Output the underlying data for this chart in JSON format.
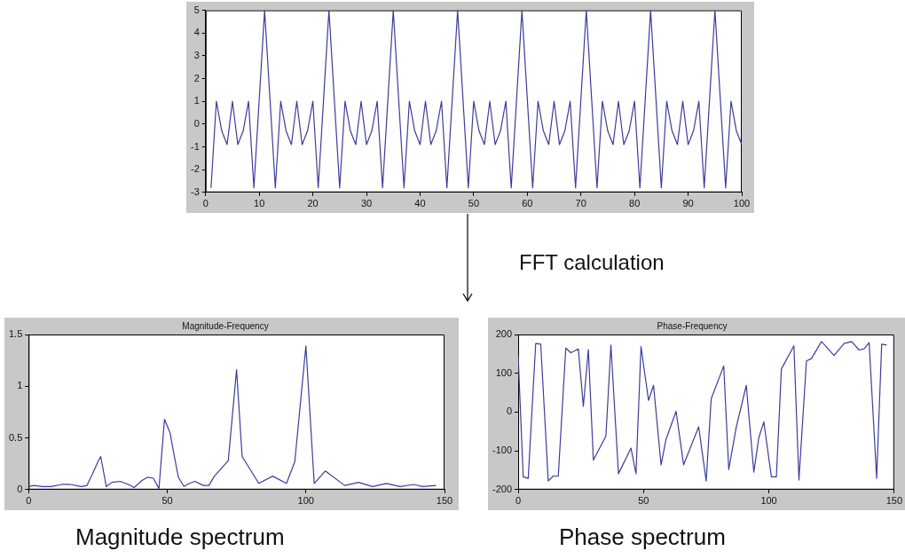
{
  "chart_data": [
    {
      "type": "line",
      "x": [
        1,
        2,
        3,
        4,
        5,
        6,
        7,
        8,
        9,
        10,
        11,
        12,
        13,
        14,
        15,
        16,
        17,
        18,
        19,
        20,
        21,
        22,
        23,
        24,
        25,
        26,
        27,
        28,
        29,
        30,
        31,
        32,
        33,
        34,
        35,
        36,
        37,
        38,
        39,
        40,
        41,
        42,
        43,
        44,
        45,
        46,
        47,
        48,
        49,
        50,
        51,
        52,
        53,
        54,
        55,
        56,
        57,
        58,
        59,
        60,
        61,
        62,
        63,
        64,
        65,
        66,
        67,
        68,
        69,
        70,
        71,
        72,
        73,
        74,
        75,
        76,
        77,
        78,
        79,
        80,
        81,
        82,
        83,
        84,
        85,
        86,
        87,
        88,
        89,
        90,
        91,
        92,
        93,
        94,
        95,
        96,
        97,
        98,
        99,
        100
      ],
      "series": [
        {
          "color": "#3c3c9c",
          "values": [
            -2.8,
            1,
            -0.3,
            -0.9,
            1,
            -0.9,
            -0.3,
            1,
            -2.8,
            1.1,
            5,
            1.1,
            -2.8,
            1,
            -0.3,
            -0.9,
            1,
            -0.9,
            -0.3,
            1,
            -2.8,
            1.1,
            5,
            1.1,
            -2.8,
            1,
            -0.3,
            -0.9,
            1,
            -0.9,
            -0.3,
            1,
            -2.8,
            1.1,
            5,
            1.1,
            -2.8,
            1,
            -0.3,
            -0.9,
            1,
            -0.9,
            -0.3,
            1,
            -2.8,
            1.1,
            5,
            1.1,
            -2.8,
            1,
            -0.3,
            -0.9,
            1,
            -0.9,
            -0.3,
            1,
            -2.8,
            1.1,
            5,
            1.1,
            -2.8,
            1,
            -0.3,
            -0.9,
            1,
            -0.9,
            -0.3,
            1,
            -2.8,
            1.1,
            5,
            1.1,
            -2.8,
            1,
            -0.3,
            -0.9,
            1,
            -0.9,
            -0.3,
            1,
            -2.8,
            1.1,
            5,
            1.1,
            -2.8,
            1,
            -0.3,
            -0.9,
            1,
            -0.9,
            -0.3,
            1,
            -2.8,
            1.1,
            5,
            1.1,
            -2.8,
            1,
            -0.3,
            -0.9
          ]
        }
      ],
      "xlim": [
        0,
        100
      ],
      "xticks": [
        0,
        10,
        20,
        30,
        40,
        50,
        60,
        70,
        80,
        90,
        100
      ],
      "ylim": [
        -3,
        5
      ],
      "yticks": [
        -3,
        -2,
        -1,
        0,
        1,
        2,
        3,
        4,
        5
      ],
      "grid": false,
      "legend": false,
      "marker": "none",
      "line_style": "solid",
      "annotations": [
        "FFT calculation"
      ]
    },
    {
      "type": "line",
      "title": "Magnitude-Frequency",
      "x": [
        0,
        2,
        5,
        8,
        12,
        15,
        19,
        21,
        23,
        25,
        26,
        28,
        30,
        33,
        36,
        38,
        41,
        43,
        45,
        47,
        49,
        51,
        52,
        54,
        56,
        58,
        60,
        63,
        65,
        67,
        70,
        72,
        75,
        77,
        83,
        88,
        93,
        96,
        100,
        103,
        107,
        114,
        119,
        124,
        129,
        134,
        139,
        142,
        147
      ],
      "series": [
        {
          "color": "#3c3c9c",
          "values": [
            0.03,
            0.04,
            0.03,
            0.03,
            0.05,
            0.05,
            0.03,
            0.04,
            0.15,
            0.27,
            0.32,
            0.03,
            0.07,
            0.08,
            0.05,
            0.02,
            0.09,
            0.12,
            0.11,
            0.01,
            0.68,
            0.55,
            0.4,
            0.12,
            0.03,
            0.06,
            0.08,
            0.04,
            0.04,
            0.13,
            0.22,
            0.28,
            1.16,
            0.32,
            0.06,
            0.13,
            0.06,
            0.27,
            1.39,
            0.06,
            0.18,
            0.04,
            0.07,
            0.03,
            0.06,
            0.03,
            0.05,
            0.03,
            0.04
          ]
        }
      ],
      "xlim": [
        0,
        150
      ],
      "xticks": [
        0,
        50,
        100,
        150
      ],
      "ylim": [
        0,
        1.5
      ],
      "yticks": [
        0,
        0.5,
        1,
        1.5
      ],
      "grid": false,
      "legend": false,
      "marker": "none",
      "line_style": "solid",
      "annotations": [
        "Magnitude spectrum"
      ]
    },
    {
      "type": "line",
      "title": "Phase-Frequency",
      "x": [
        0,
        2,
        4,
        7,
        9,
        12,
        14,
        16,
        19,
        21,
        24,
        26,
        28,
        30,
        35,
        37,
        40,
        45,
        47,
        49,
        52,
        54,
        57,
        59,
        63,
        66,
        72,
        75,
        77,
        82,
        84,
        87,
        91,
        94,
        96,
        98,
        101,
        103,
        105,
        110,
        112,
        115,
        117,
        121,
        126,
        130,
        133,
        136,
        138,
        140,
        143,
        145,
        147
      ],
      "series": [
        {
          "color": "#3c3c9c",
          "values": [
            146,
            -167,
            -171,
            177,
            175,
            -178,
            -165,
            -165,
            165,
            153,
            163,
            15,
            161,
            -124,
            -62,
            173,
            -159,
            -93,
            -159,
            169,
            30,
            69,
            -136,
            -70,
            2,
            -136,
            -38,
            -178,
            34,
            119,
            -148,
            -39,
            69,
            -155,
            -66,
            -25,
            -167,
            -167,
            111,
            171,
            -175,
            132,
            138,
            182,
            146,
            177,
            182,
            160,
            163,
            179,
            -171,
            175,
            173
          ]
        }
      ],
      "xlim": [
        0,
        150
      ],
      "xticks": [
        0,
        50,
        100,
        150
      ],
      "ylim": [
        -200,
        200
      ],
      "yticks": [
        -200,
        -100,
        0,
        100,
        200
      ],
      "grid": false,
      "legend": false,
      "marker": "none",
      "line_style": "solid",
      "annotations": [
        "Phase spectrum"
      ]
    }
  ]
}
